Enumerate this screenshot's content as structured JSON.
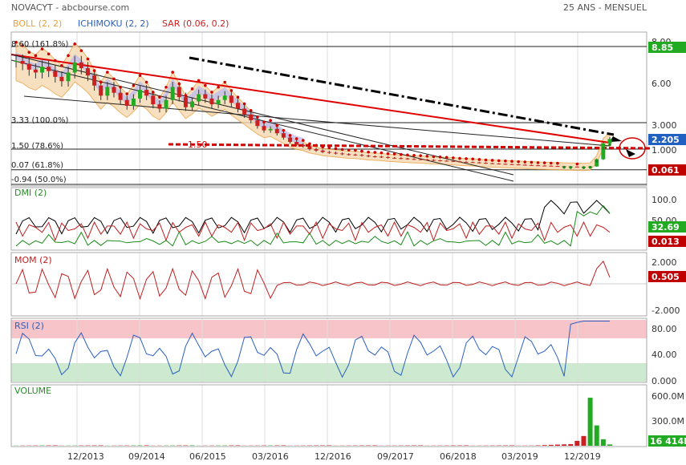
{
  "header": {
    "title": "NOVACYT - abcbourse.com",
    "period": "25 ANS - MENSUEL"
  },
  "legend": [
    {
      "label": "BOLL (2, 2)",
      "color": "#e8a040"
    },
    {
      "label": "ICHIMOKU (2, 2)",
      "color": "#2a60c0"
    },
    {
      "label": "SAR (0.06, 0.2)",
      "color": "#d02020"
    }
  ],
  "colors": {
    "accent_red": "#d00000",
    "price_green_badge": "#22aa22",
    "price_red_badge": "#c00000",
    "rsi_overbought": "#f7c5c9",
    "rsi_oversold": "#cde9cf"
  },
  "x_labels": [
    "12/2013",
    "09/2014",
    "06/2015",
    "03/2016",
    "12/2016",
    "09/2017",
    "06/2018",
    "03/2019",
    "12/2019"
  ],
  "panels": {
    "main": {
      "y_ticks": [
        "8.00",
        "6.00",
        "3.000",
        "1.000"
      ],
      "fib_levels": [
        {
          "label": "8.60  (161.8%)",
          "value": 8.6
        },
        {
          "label": "3.33  (100.0%)",
          "value": 3.33
        },
        {
          "label": "1.50  (78.6%)",
          "value": 1.5
        },
        {
          "label": "0.07  (61.8%)",
          "value": 0.07
        },
        {
          "label": "-0.94  (50.0%)",
          "value": -0.94
        }
      ],
      "support_label": "1.50",
      "badges": [
        {
          "value": "8.85",
          "color": "#22aa22"
        },
        {
          "value": "2.205",
          "color": "#2060c0"
        },
        {
          "value": "0.061",
          "color": "#c00000"
        }
      ]
    },
    "dmi": {
      "title": "DMI (2)",
      "y_ticks": [
        "100.0",
        "50.00"
      ],
      "badges": [
        {
          "value": "32.69",
          "color": "#22aa22"
        },
        {
          "value": "0.013",
          "color": "#c00000"
        }
      ]
    },
    "mom": {
      "title": "MOM (2)",
      "y_ticks": [
        "2.000",
        "-2.000"
      ],
      "badges": [
        {
          "value": "0.505",
          "color": "#c00000"
        }
      ]
    },
    "rsi": {
      "title": "RSI (2)",
      "y_ticks": [
        "80.00",
        "40.00",
        "0.000"
      ],
      "badges": []
    },
    "volume": {
      "title": "VOLUME",
      "y_ticks": [
        "600.0M",
        "300.0M"
      ],
      "badges": [
        {
          "value": "16 414K",
          "color": "#22aa22"
        }
      ]
    }
  },
  "chart_data": {
    "type": "candlestick",
    "title": "NOVACYT - abcbourse.com",
    "x_period": "monthly",
    "x_range": [
      "2013-06",
      "2020-06"
    ],
    "price_series": {
      "name": "NOVACYT",
      "close": [
        7.6,
        7.4,
        7.0,
        6.8,
        7.2,
        6.9,
        6.5,
        6.2,
        6.8,
        7.5,
        7.1,
        6.6,
        5.9,
        5.2,
        5.8,
        5.4,
        4.9,
        4.5,
        5.0,
        5.6,
        5.2,
        4.6,
        4.3,
        4.9,
        5.8,
        5.1,
        4.4,
        4.8,
        5.3,
        5.0,
        4.6,
        4.9,
        5.2,
        4.7,
        4.3,
        3.9,
        3.5,
        3.1,
        2.8,
        2.9,
        2.6,
        2.3,
        2.0,
        1.8,
        1.7,
        1.5,
        1.4,
        1.3,
        1.25,
        1.2,
        1.15,
        1.12,
        1.1,
        1.05,
        1.0,
        0.98,
        0.95,
        0.9,
        0.88,
        0.85,
        0.82,
        0.8,
        0.78,
        0.75,
        0.72,
        0.7,
        0.68,
        0.65,
        0.62,
        0.6,
        0.58,
        0.55,
        0.52,
        0.5,
        0.48,
        0.46,
        0.44,
        0.42,
        0.4,
        0.38,
        0.36,
        0.35,
        0.33,
        0.32,
        0.3,
        0.29,
        0.28,
        0.27,
        0.3,
        0.8,
        1.9,
        2.2
      ]
    },
    "indicators": {
      "DMI": {
        "plus": 32.69,
        "minus": 0.013
      },
      "MOM": 0.505,
      "RSI": 98,
      "VOLUME_last": "16 414K",
      "VOLUME_peak": 590
    },
    "panel_ranges": {
      "main": [
        -0.94,
        8.6
      ],
      "dmi": [
        0,
        100
      ],
      "mom": [
        -2.5,
        2.3
      ],
      "rsi": [
        0,
        100
      ],
      "volume": [
        0,
        650
      ]
    }
  }
}
